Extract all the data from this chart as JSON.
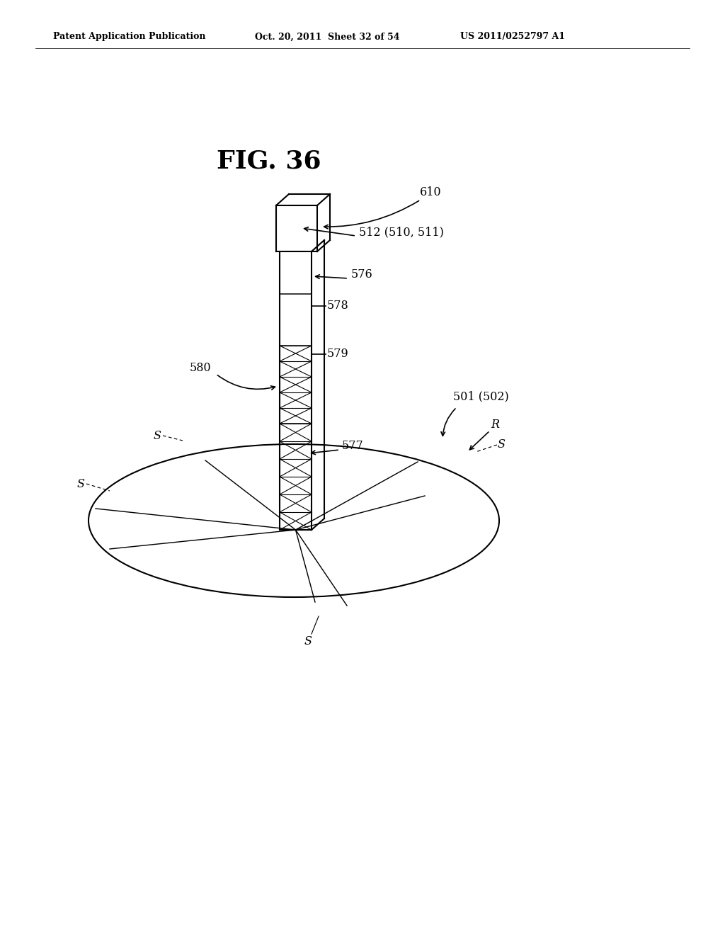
{
  "background_color": "#ffffff",
  "header_left": "Patent Application Publication",
  "header_center": "Oct. 20, 2011  Sheet 32 of 54",
  "header_right": "US 2011/0252797 A1",
  "figure_title": "FIG. 36",
  "line_color": "#000000",
  "text_color": "#000000",
  "line_width": 1.2
}
